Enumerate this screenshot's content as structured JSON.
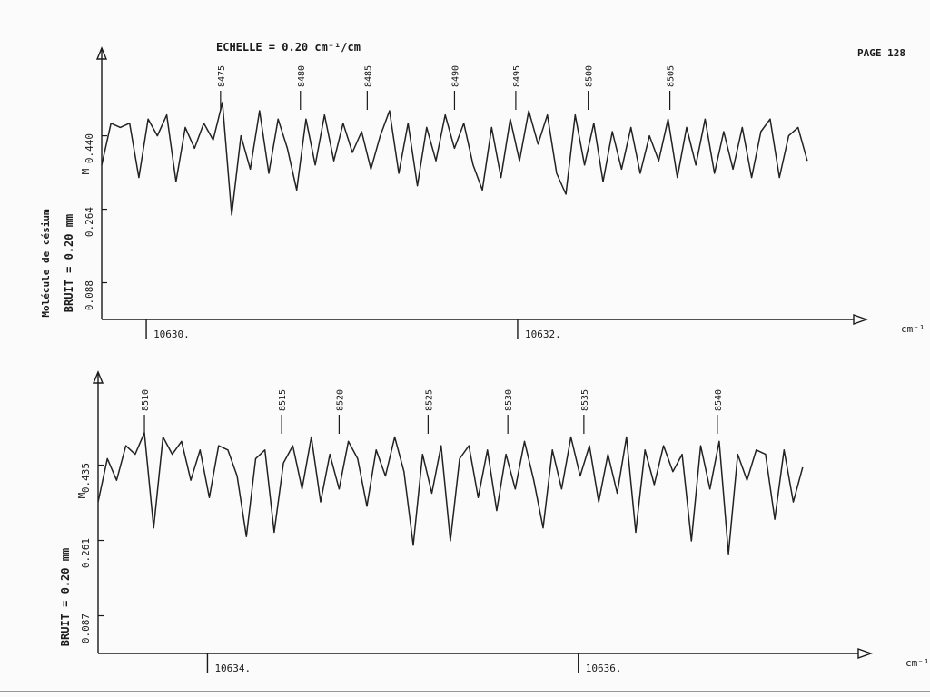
{
  "page": "PAGE 128",
  "scale": "ECHELLE = 0.20 cm⁻¹/cm",
  "chart_data": [
    {
      "type": "line",
      "color": "#222222",
      "note": "Molécule de césium",
      "ylabel": "BRUIT = 0.20 mm",
      "marker": "M",
      "xlabel": "cm⁻¹",
      "xlim": [
        10629.76,
        10633.81
      ],
      "ylim": [
        0,
        0.65
      ],
      "xticks": [
        {
          "value": 10630,
          "label": "10630."
        },
        {
          "value": 10632,
          "label": "10632."
        }
      ],
      "yticks": [
        {
          "value": 0.44,
          "label": "0.440"
        },
        0.264,
        0.088
      ],
      "annotations": [
        {
          "x": 10630.4,
          "label": "8475"
        },
        {
          "x": 10630.83,
          "label": "8480"
        },
        {
          "x": 10631.19,
          "label": "8485"
        },
        {
          "x": 10631.66,
          "label": "8490"
        },
        {
          "x": 10631.99,
          "label": "8495"
        },
        {
          "x": 10632.38,
          "label": "8500"
        },
        {
          "x": 10632.82,
          "label": "8505"
        }
      ],
      "x": [
        10629.76,
        10629.81,
        10629.86,
        10629.91,
        10629.96,
        10630.01,
        10630.06,
        10630.11,
        10630.16,
        10630.21,
        10630.26,
        10630.31,
        10630.36,
        10630.41,
        10630.46,
        10630.51,
        10630.56,
        10630.61,
        10630.66,
        10630.71,
        10630.76,
        10630.81,
        10630.86,
        10630.91,
        10630.96,
        10631.01,
        10631.06,
        10631.11,
        10631.16,
        10631.21,
        10631.26,
        10631.31,
        10631.36,
        10631.41,
        10631.46,
        10631.51,
        10631.56,
        10631.61,
        10631.66,
        10631.71,
        10631.76,
        10631.81,
        10631.86,
        10631.91,
        10631.96,
        10632.01,
        10632.06,
        10632.11,
        10632.16,
        10632.21,
        10632.26,
        10632.31,
        10632.36,
        10632.41,
        10632.46,
        10632.51,
        10632.56,
        10632.61,
        10632.66,
        10632.71,
        10632.76,
        10632.81,
        10632.86,
        10632.91,
        10632.96,
        10633.01,
        10633.06,
        10633.11,
        10633.16,
        10633.21,
        10633.26,
        10633.31,
        10633.36,
        10633.41,
        10633.46,
        10633.51,
        10633.56
      ],
      "values": [
        0.37,
        0.47,
        0.46,
        0.47,
        0.34,
        0.48,
        0.44,
        0.49,
        0.33,
        0.46,
        0.41,
        0.47,
        0.43,
        0.52,
        0.25,
        0.44,
        0.36,
        0.5,
        0.35,
        0.48,
        0.41,
        0.31,
        0.48,
        0.37,
        0.49,
        0.38,
        0.47,
        0.4,
        0.45,
        0.36,
        0.44,
        0.5,
        0.35,
        0.47,
        0.32,
        0.46,
        0.38,
        0.49,
        0.41,
        0.47,
        0.37,
        0.31,
        0.46,
        0.34,
        0.48,
        0.38,
        0.5,
        0.42,
        0.49,
        0.35,
        0.3,
        0.49,
        0.37,
        0.47,
        0.33,
        0.45,
        0.36,
        0.46,
        0.35,
        0.44,
        0.38,
        0.48,
        0.34,
        0.46,
        0.37,
        0.48,
        0.35,
        0.45,
        0.36,
        0.46,
        0.34,
        0.45,
        0.48,
        0.34,
        0.44,
        0.46,
        0.38
      ]
    },
    {
      "type": "line",
      "color": "#222222",
      "ylabel": "BRUIT = 0.20 mm",
      "marker": "M",
      "xlabel": "cm⁻¹",
      "xlim": [
        10633.41,
        10637.51
      ],
      "ylim": [
        0,
        0.65
      ],
      "xticks": [
        {
          "value": 10634,
          "label": "10634."
        },
        {
          "value": 10636,
          "label": "10636."
        }
      ],
      "yticks": [
        0.435,
        0.261,
        0.087
      ],
      "annotations": [
        {
          "x": 10633.66,
          "label": "8510"
        },
        {
          "x": 10634.4,
          "label": "8515"
        },
        {
          "x": 10634.71,
          "label": "8520"
        },
        {
          "x": 10635.19,
          "label": "8525"
        },
        {
          "x": 10635.62,
          "label": "8530"
        },
        {
          "x": 10636.03,
          "label": "8535"
        },
        {
          "x": 10636.75,
          "label": "8540"
        }
      ],
      "x": [
        10633.41,
        10633.46,
        10633.51,
        10633.56,
        10633.61,
        10633.66,
        10633.71,
        10633.76,
        10633.81,
        10633.86,
        10633.91,
        10633.96,
        10634.01,
        10634.06,
        10634.11,
        10634.16,
        10634.21,
        10634.26,
        10634.31,
        10634.36,
        10634.41,
        10634.46,
        10634.51,
        10634.56,
        10634.61,
        10634.66,
        10634.71,
        10634.76,
        10634.81,
        10634.86,
        10634.91,
        10634.96,
        10635.01,
        10635.06,
        10635.11,
        10635.16,
        10635.21,
        10635.26,
        10635.31,
        10635.36,
        10635.41,
        10635.46,
        10635.51,
        10635.56,
        10635.61,
        10635.66,
        10635.71,
        10635.76,
        10635.81,
        10635.86,
        10635.91,
        10635.96,
        10636.01,
        10636.06,
        10636.11,
        10636.16,
        10636.21,
        10636.26,
        10636.31,
        10636.36,
        10636.41,
        10636.46,
        10636.51,
        10636.56,
        10636.61,
        10636.66,
        10636.71,
        10636.76,
        10636.81,
        10636.86,
        10636.91,
        10636.96,
        10637.01,
        10637.06,
        10637.11,
        10637.16,
        10637.21
      ],
      "values": [
        0.35,
        0.45,
        0.4,
        0.48,
        0.46,
        0.51,
        0.29,
        0.5,
        0.46,
        0.49,
        0.4,
        0.47,
        0.36,
        0.48,
        0.47,
        0.41,
        0.27,
        0.45,
        0.47,
        0.28,
        0.44,
        0.48,
        0.38,
        0.5,
        0.35,
        0.46,
        0.38,
        0.49,
        0.45,
        0.34,
        0.47,
        0.41,
        0.5,
        0.42,
        0.25,
        0.46,
        0.37,
        0.48,
        0.26,
        0.45,
        0.48,
        0.36,
        0.47,
        0.33,
        0.46,
        0.38,
        0.49,
        0.4,
        0.29,
        0.47,
        0.38,
        0.5,
        0.41,
        0.48,
        0.35,
        0.46,
        0.37,
        0.5,
        0.28,
        0.47,
        0.39,
        0.48,
        0.42,
        0.46,
        0.26,
        0.48,
        0.38,
        0.49,
        0.23,
        0.46,
        0.4,
        0.47,
        0.46,
        0.31,
        0.47,
        0.35,
        0.43
      ]
    }
  ]
}
